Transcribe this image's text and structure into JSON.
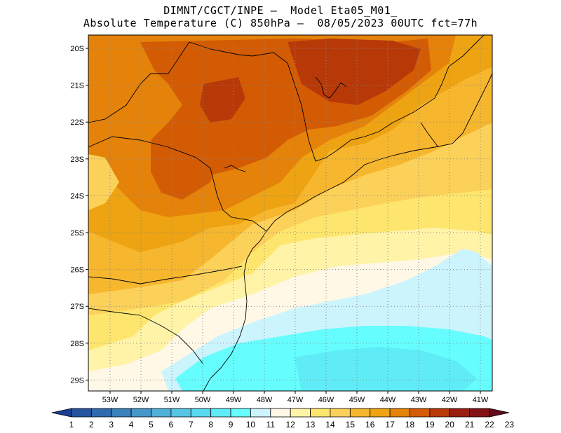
{
  "title": {
    "line1": "DIMNT/CGCT/INPE —  Model Eta05_M01_",
    "line2": "Absolute Temperature (C) 850hPa —  08/05/2023 00UTC fct=77h"
  },
  "map": {
    "lat_labels": [
      "20S",
      "21S",
      "22S",
      "23S",
      "24S",
      "25S",
      "26S",
      "27S",
      "28S",
      "29S"
    ],
    "lon_labels": [
      "53W",
      "52W",
      "51W",
      "50W",
      "49W",
      "48W",
      "47W",
      "46W",
      "45W",
      "44W",
      "43W",
      "42W",
      "41W"
    ]
  },
  "colorbar": {
    "labels": [
      "1",
      "2",
      "3",
      "4",
      "5",
      "6",
      "7",
      "8",
      "9",
      "10",
      "11",
      "12",
      "13",
      "14",
      "15",
      "16",
      "17",
      "18",
      "19",
      "20",
      "21",
      "22",
      "23"
    ],
    "colors": [
      "#1f3e91",
      "#25549f",
      "#2f6bae",
      "#3a82bd",
      "#4598c9",
      "#4fb0d8",
      "#55c5e3",
      "#5ad9ee",
      "#5fecf6",
      "#66fdfe",
      "#ccf4fd",
      "#fff8e6",
      "#fff3a8",
      "#fee66e",
      "#fcd15a",
      "#f6b62d",
      "#eea312",
      "#e4820a",
      "#d35b04",
      "#b83908",
      "#9a1f10",
      "#821214",
      "#640a1e"
    ]
  }
}
